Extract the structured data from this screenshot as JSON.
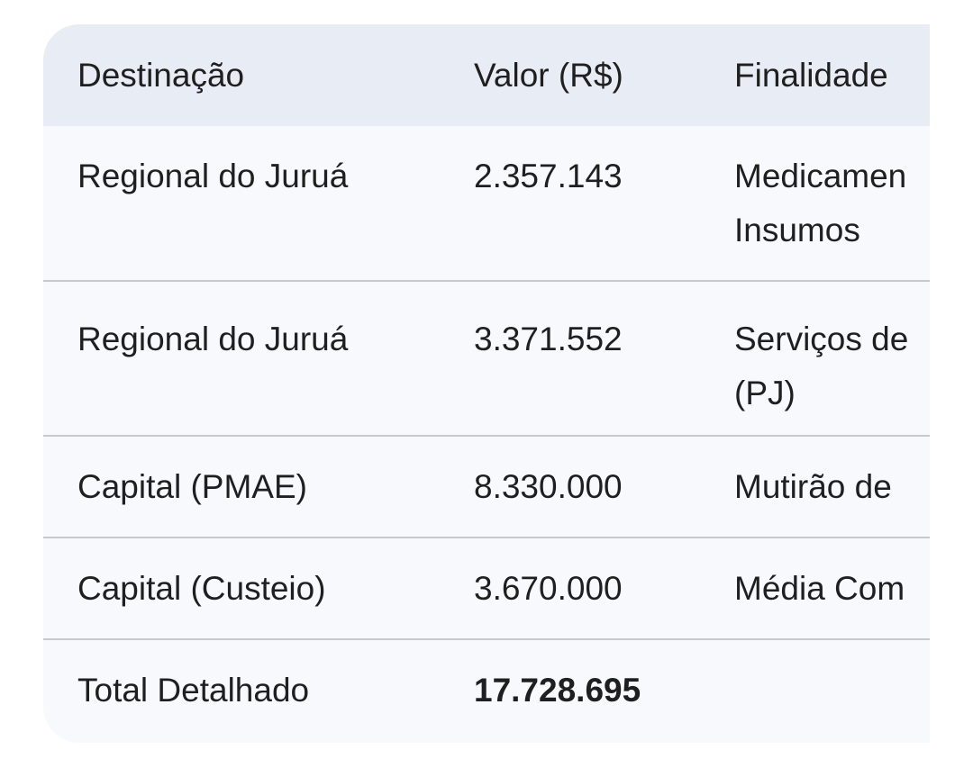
{
  "table": {
    "headers": [
      "Destinação",
      "Valor (R$)",
      "Finalidade"
    ],
    "rows": [
      {
        "destinacao": "Regional do Juruá",
        "valor": "2.357.143",
        "finalidade_line1": "Medicamen",
        "finalidade_line2": "Insumos"
      },
      {
        "destinacao": "Regional do Juruá",
        "valor": "3.371.552",
        "finalidade_line1": "Serviços de",
        "finalidade_line2": "(PJ)"
      },
      {
        "destinacao": "Capital (PMAE)",
        "valor": "8.330.000",
        "finalidade_line1": "Mutirão de"
      },
      {
        "destinacao": "Capital (Custeio)",
        "valor": "3.670.000",
        "finalidade_line1": "Média Com"
      }
    ],
    "total": {
      "label": "Total Detalhado",
      "valor": "17.728.695"
    }
  }
}
